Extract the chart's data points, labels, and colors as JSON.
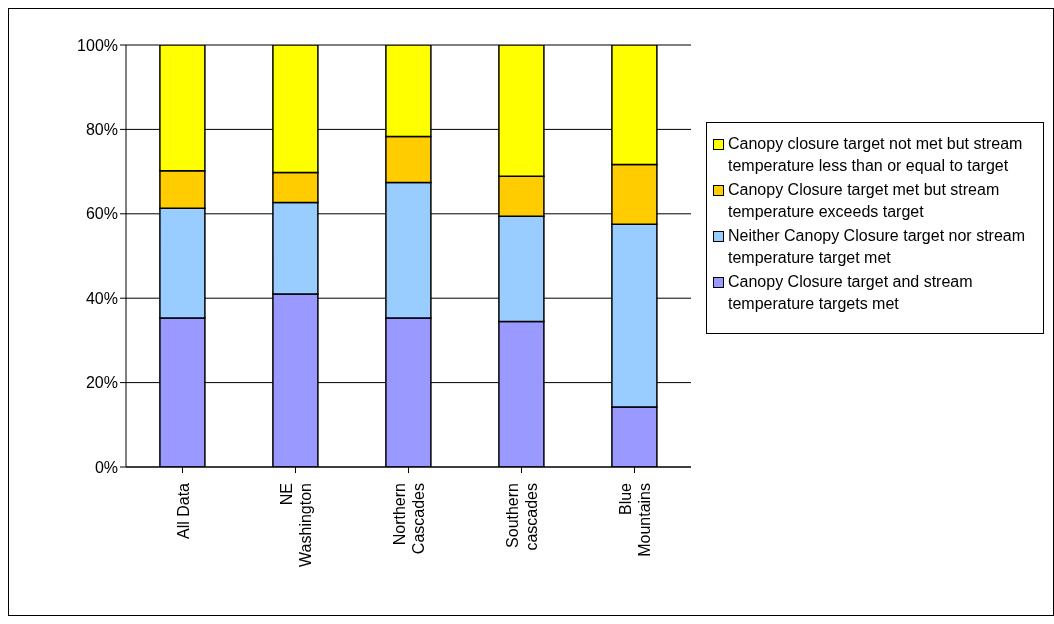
{
  "chart_data": {
    "type": "bar",
    "stacked": true,
    "categories": [
      "All Data",
      "NE\nWashington",
      "Northern\nCascades",
      "Southern\ncascades",
      "Blue\nMountains"
    ],
    "series": [
      {
        "name": "Canopy Closure target and stream temperature targets met",
        "color": "#9999ff",
        "values": [
          35.3,
          41,
          35.3,
          34.5,
          14.2
        ]
      },
      {
        "name": "Neither Canopy Closure target nor stream temperature target met",
        "color": "#99ccff",
        "values": [
          26,
          21.7,
          32.1,
          24.9,
          43.3
        ]
      },
      {
        "name": "Canopy Closure target met but stream temperature exceeds target",
        "color": "#ffcc00",
        "values": [
          8.9,
          7.1,
          10.9,
          9.5,
          14.2
        ]
      },
      {
        "name": "Canopy closure target not met but stream temperature less than or equal to target",
        "color": "#ffff00",
        "values": [
          29.8,
          30.2,
          21.7,
          31.1,
          28.3
        ]
      }
    ],
    "ylim": [
      0,
      100
    ],
    "yticks": [
      {
        "value": 0,
        "label": "0%"
      },
      {
        "value": 20,
        "label": "20%"
      },
      {
        "value": 40,
        "label": "40%"
      },
      {
        "value": 60,
        "label": "60%"
      },
      {
        "value": 80,
        "label": "80%"
      },
      {
        "value": 100,
        "label": "100%"
      }
    ],
    "grid": "y",
    "legend": "right"
  }
}
